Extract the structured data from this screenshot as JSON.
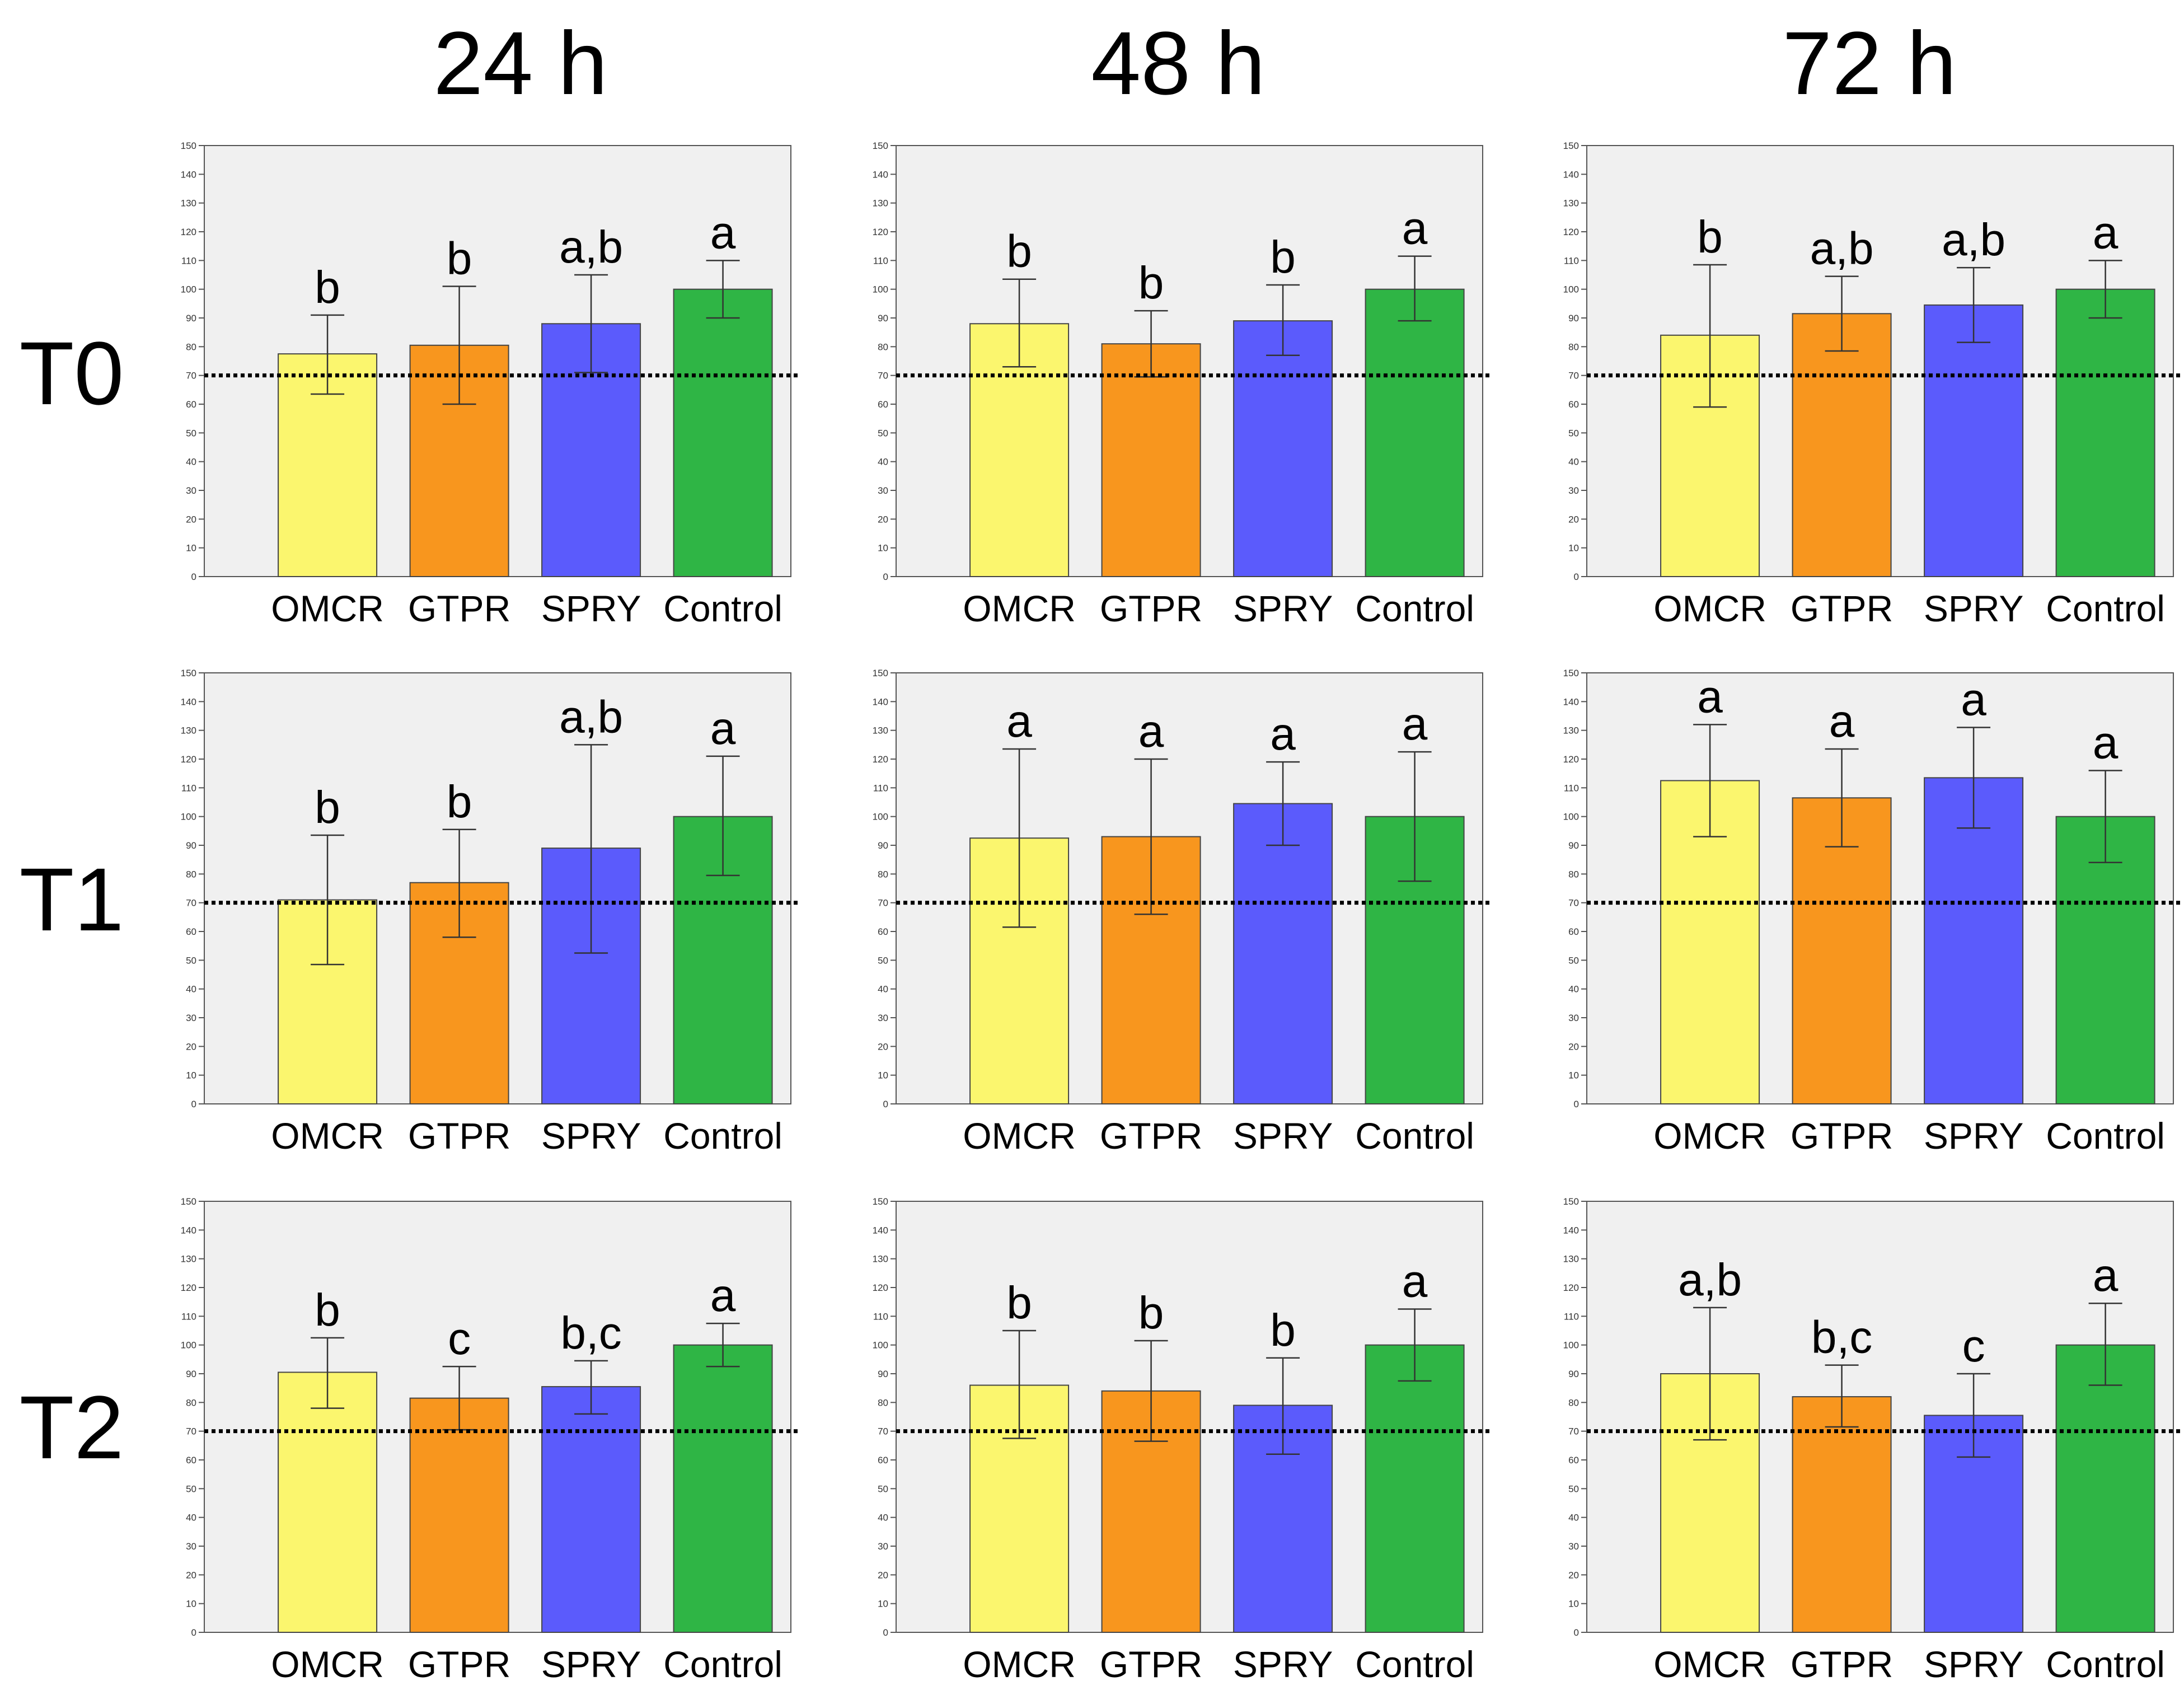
{
  "figure": {
    "column_headers": [
      "24 h",
      "48 h",
      "72 h"
    ],
    "row_headers": [
      "T0",
      "T1",
      "T2"
    ]
  },
  "colors": {
    "OMCR": "#fbf66e",
    "GTPR": "#f8961e",
    "SPRY": "#5b5bfc",
    "Control": "#2fb545",
    "plot_background": "#f0f0f0",
    "axis": "#555555",
    "reference_line": "#000000"
  },
  "chart_data": [
    {
      "type": "bar",
      "row": "T0",
      "column": "24 h",
      "categories": [
        "OMCR",
        "GTPR",
        "SPRY",
        "Control"
      ],
      "values": [
        77.5,
        80.5,
        88,
        100
      ],
      "error_low": [
        63.5,
        60,
        71,
        90
      ],
      "error_high": [
        91,
        101,
        105,
        110
      ],
      "letters": [
        "b",
        "b",
        "a,b",
        "a"
      ],
      "ylim": [
        0,
        150
      ],
      "yticks": [
        0,
        10,
        20,
        30,
        40,
        50,
        60,
        70,
        80,
        90,
        100,
        110,
        120,
        130,
        140,
        150
      ],
      "reference_line": 70
    },
    {
      "type": "bar",
      "row": "T0",
      "column": "48 h",
      "categories": [
        "OMCR",
        "GTPR",
        "SPRY",
        "Control"
      ],
      "values": [
        88,
        81,
        89,
        100
      ],
      "error_low": [
        73,
        69.5,
        77,
        89
      ],
      "error_high": [
        103.5,
        92.5,
        101.5,
        111.5
      ],
      "letters": [
        "b",
        "b",
        "b",
        "a"
      ],
      "ylim": [
        0,
        150
      ],
      "yticks": [
        0,
        10,
        20,
        30,
        40,
        50,
        60,
        70,
        80,
        90,
        100,
        110,
        120,
        130,
        140,
        150
      ],
      "reference_line": 70
    },
    {
      "type": "bar",
      "row": "T0",
      "column": "72 h",
      "categories": [
        "OMCR",
        "GTPR",
        "SPRY",
        "Control"
      ],
      "values": [
        84,
        91.5,
        94.5,
        100
      ],
      "error_low": [
        59,
        78.5,
        81.5,
        90
      ],
      "error_high": [
        108.5,
        104.5,
        107.5,
        110
      ],
      "letters": [
        "b",
        "a,b",
        "a,b",
        "a"
      ],
      "ylim": [
        0,
        150
      ],
      "yticks": [
        0,
        10,
        20,
        30,
        40,
        50,
        60,
        70,
        80,
        90,
        100,
        110,
        120,
        130,
        140,
        150
      ],
      "reference_line": 70
    },
    {
      "type": "bar",
      "row": "T1",
      "column": "24 h",
      "categories": [
        "OMCR",
        "GTPR",
        "SPRY",
        "Control"
      ],
      "values": [
        71,
        77,
        89,
        100
      ],
      "error_low": [
        48.5,
        58,
        52.5,
        79.5
      ],
      "error_high": [
        93.5,
        95.5,
        125,
        121
      ],
      "letters": [
        "b",
        "b",
        "a,b",
        "a"
      ],
      "ylim": [
        0,
        150
      ],
      "yticks": [
        0,
        10,
        20,
        30,
        40,
        50,
        60,
        70,
        80,
        90,
        100,
        110,
        120,
        130,
        140,
        150
      ],
      "reference_line": 70
    },
    {
      "type": "bar",
      "row": "T1",
      "column": "48 h",
      "categories": [
        "OMCR",
        "GTPR",
        "SPRY",
        "Control"
      ],
      "values": [
        92.5,
        93,
        104.5,
        100
      ],
      "error_low": [
        61.5,
        66,
        90,
        77.5
      ],
      "error_high": [
        123.5,
        120,
        119,
        122.5
      ],
      "letters": [
        "a",
        "a",
        "a",
        "a"
      ],
      "ylim": [
        0,
        150
      ],
      "yticks": [
        0,
        10,
        20,
        30,
        40,
        50,
        60,
        70,
        80,
        90,
        100,
        110,
        120,
        130,
        140,
        150
      ],
      "reference_line": 70
    },
    {
      "type": "bar",
      "row": "T1",
      "column": "72 h",
      "categories": [
        "OMCR",
        "GTPR",
        "SPRY",
        "Control"
      ],
      "values": [
        112.5,
        106.5,
        113.5,
        100
      ],
      "error_low": [
        93,
        89.5,
        96,
        84
      ],
      "error_high": [
        132,
        123.5,
        131,
        116
      ],
      "letters": [
        "a",
        "a",
        "a",
        "a"
      ],
      "ylim": [
        0,
        150
      ],
      "yticks": [
        0,
        10,
        20,
        30,
        40,
        50,
        60,
        70,
        80,
        90,
        100,
        110,
        120,
        130,
        140,
        150
      ],
      "reference_line": 70
    },
    {
      "type": "bar",
      "row": "T2",
      "column": "24 h",
      "categories": [
        "OMCR",
        "GTPR",
        "SPRY",
        "Control"
      ],
      "values": [
        90.5,
        81.5,
        85.5,
        100
      ],
      "error_low": [
        78,
        70.5,
        76,
        92.5
      ],
      "error_high": [
        102.5,
        92.5,
        94.5,
        107.5
      ],
      "letters": [
        "b",
        "c",
        "b,c",
        "a"
      ],
      "ylim": [
        0,
        150
      ],
      "yticks": [
        0,
        10,
        20,
        30,
        40,
        50,
        60,
        70,
        80,
        90,
        100,
        110,
        120,
        130,
        140,
        150
      ],
      "reference_line": 70
    },
    {
      "type": "bar",
      "row": "T2",
      "column": "48 h",
      "categories": [
        "OMCR",
        "GTPR",
        "SPRY",
        "Control"
      ],
      "values": [
        86,
        84,
        79,
        100
      ],
      "error_low": [
        67.5,
        66.5,
        62,
        87.5
      ],
      "error_high": [
        105,
        101.5,
        95.5,
        112.5
      ],
      "letters": [
        "b",
        "b",
        "b",
        "a"
      ],
      "ylim": [
        0,
        150
      ],
      "yticks": [
        0,
        10,
        20,
        30,
        40,
        50,
        60,
        70,
        80,
        90,
        100,
        110,
        120,
        130,
        140,
        150
      ],
      "reference_line": 70
    },
    {
      "type": "bar",
      "row": "T2",
      "column": "72 h",
      "categories": [
        "OMCR",
        "GTPR",
        "SPRY",
        "Control"
      ],
      "values": [
        90,
        82,
        75.5,
        100
      ],
      "error_low": [
        67,
        71.5,
        61,
        86
      ],
      "error_high": [
        113,
        93,
        90,
        114.5
      ],
      "letters": [
        "a,b",
        "b,c",
        "c",
        "a"
      ],
      "ylim": [
        0,
        150
      ],
      "yticks": [
        0,
        10,
        20,
        30,
        40,
        50,
        60,
        70,
        80,
        90,
        100,
        110,
        120,
        130,
        140,
        150
      ],
      "reference_line": 70
    }
  ]
}
